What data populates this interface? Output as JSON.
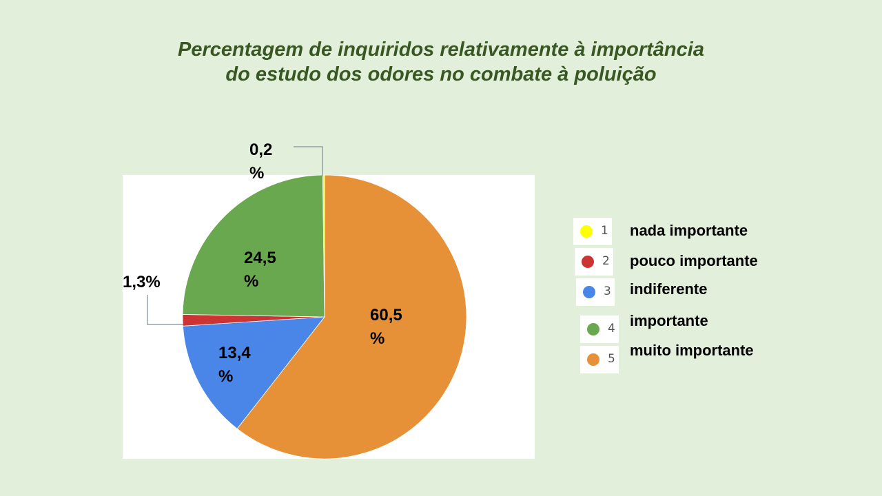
{
  "chart_data": {
    "type": "pie",
    "title_line1": "Percentagem de inquiridos relativamente à importância",
    "title_line2": "do estudo dos odores no combate à poluição",
    "categories": [
      "nada importante",
      "pouco importante",
      "indiferente",
      "importante",
      "muito importante"
    ],
    "legend_numbers": [
      "1",
      "2",
      "3",
      "4",
      "5"
    ],
    "values": [
      0.2,
      1.3,
      13.4,
      24.5,
      60.5
    ],
    "colors": [
      "#ffff00",
      "#cc3333",
      "#4a86e8",
      "#6aa84f",
      "#e69138"
    ],
    "data_labels": [
      {
        "line1": "0,2",
        "line2": "%"
      },
      {
        "line1": "1,3%",
        "line2": ""
      },
      {
        "line1": "13,4",
        "line2": "%"
      },
      {
        "line1": "24,5",
        "line2": "%"
      },
      {
        "line1": "60,5",
        "line2": "%"
      }
    ],
    "legend_position": "right"
  }
}
